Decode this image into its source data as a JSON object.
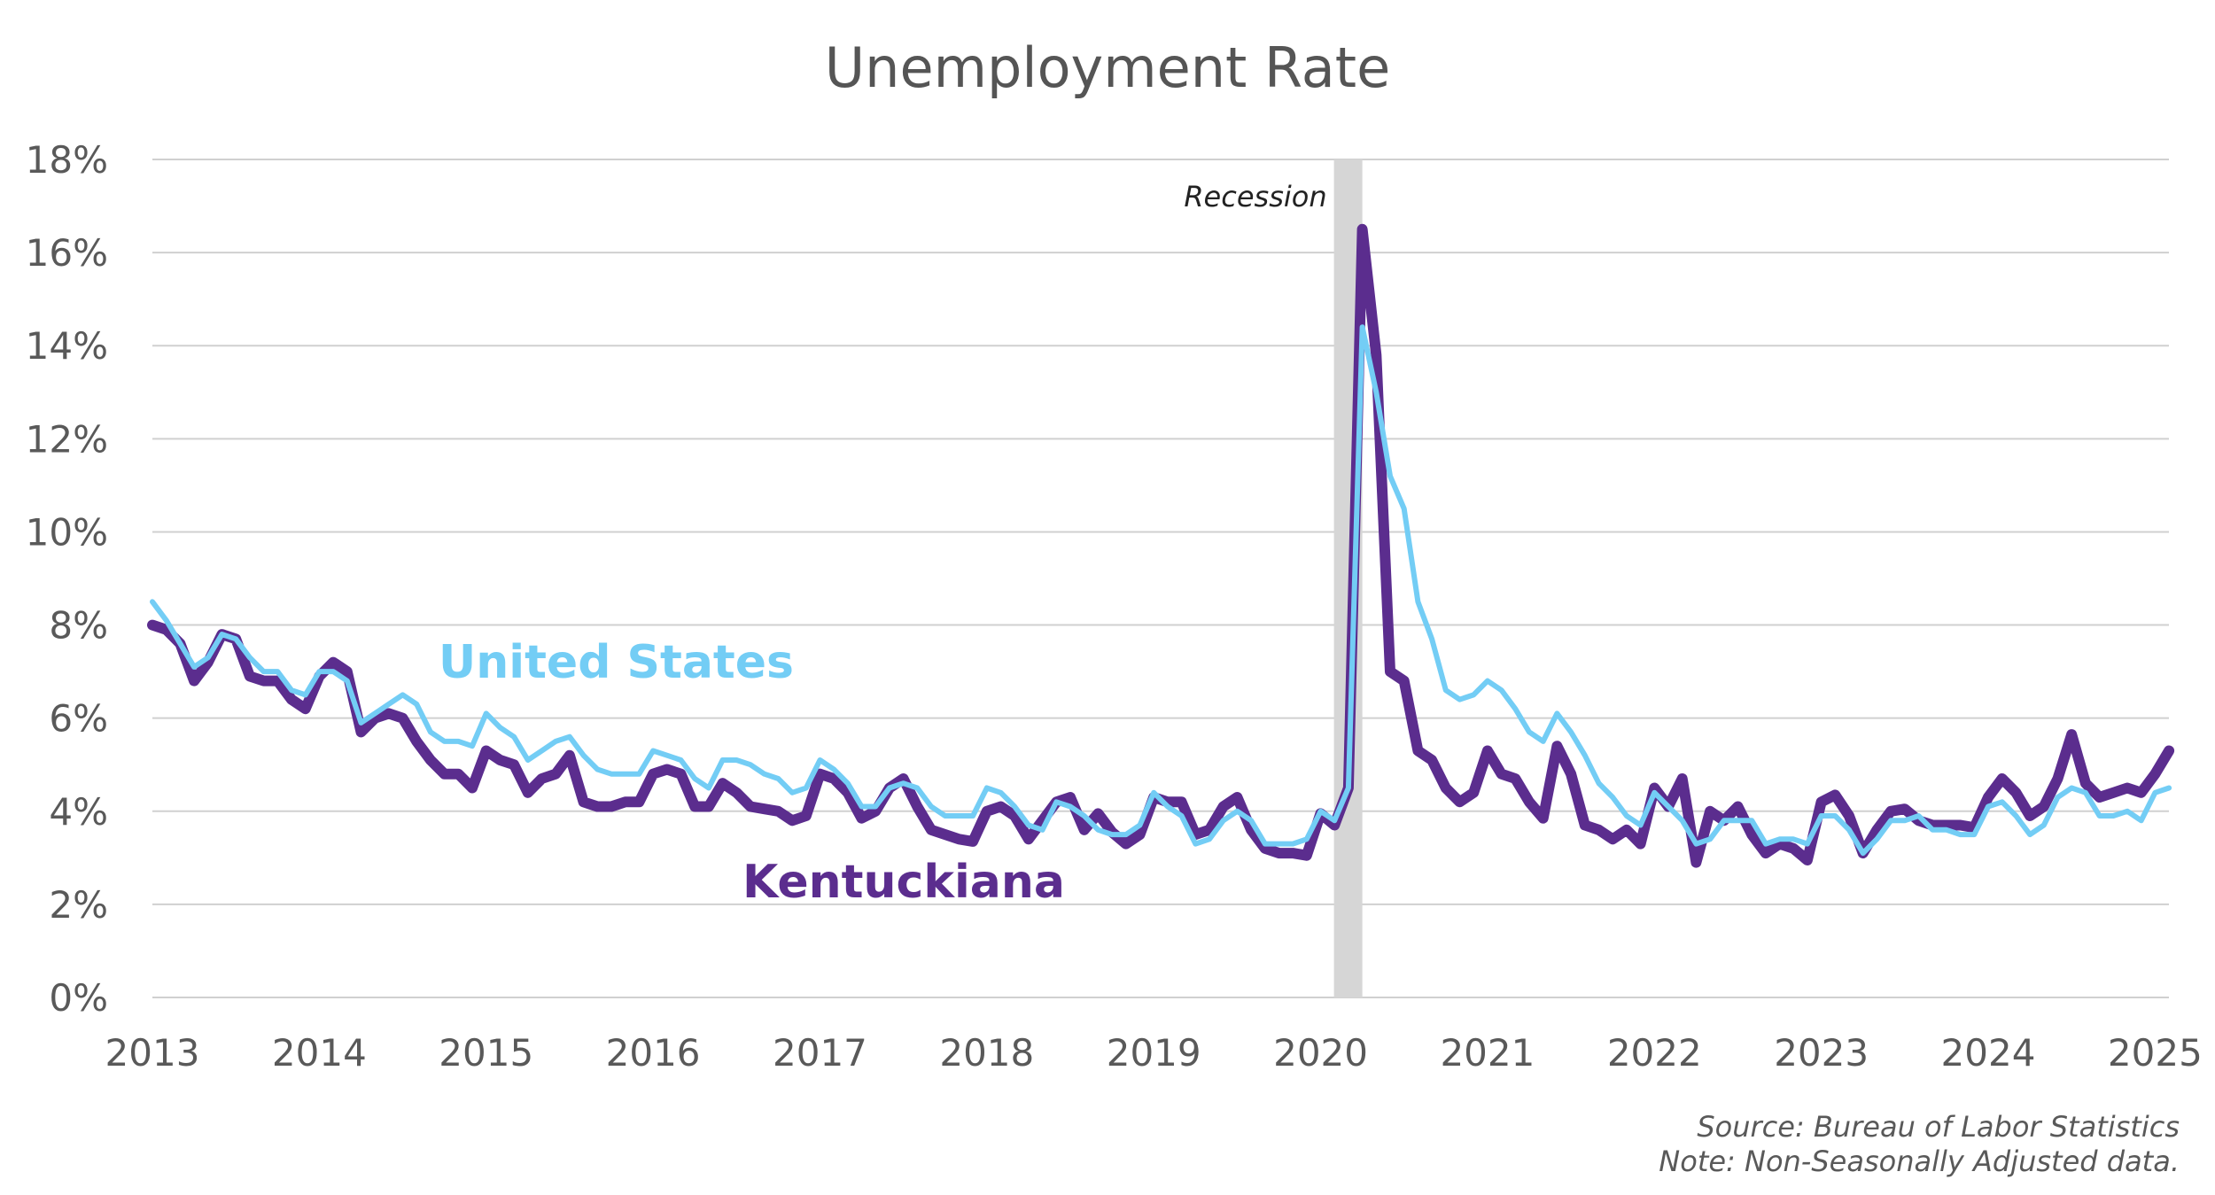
{
  "chart_data": {
    "type": "line",
    "title": "Unemployment Rate",
    "xlabel": "",
    "ylabel": "",
    "x_ticks": [
      "2013",
      "2014",
      "2015",
      "2016",
      "2017",
      "2018",
      "2019",
      "2020",
      "2021",
      "2022",
      "2023",
      "2024",
      "2025"
    ],
    "y_ticks": [
      "0%",
      "2%",
      "4%",
      "6%",
      "8%",
      "10%",
      "12%",
      "14%",
      "16%",
      "18%"
    ],
    "xlim": [
      2013.0,
      2025.083
    ],
    "ylim": [
      0,
      18
    ],
    "grid": true,
    "legend": "inline labels",
    "recession": {
      "label": "Recession",
      "start": 2020.08,
      "end": 2020.25
    },
    "annotations": {
      "source": "Source: Bureau of Labor Statistics",
      "note": "Note: Non-Seasonally Adjusted data."
    },
    "x_start": "2013-01",
    "frequency": "monthly",
    "series": [
      {
        "name": "United States",
        "color": "#73cdf5",
        "values": [
          8.5,
          8.1,
          7.6,
          7.1,
          7.3,
          7.8,
          7.7,
          7.3,
          7.0,
          7.0,
          6.6,
          6.5,
          7.0,
          7.0,
          6.8,
          5.9,
          6.1,
          6.3,
          6.5,
          6.3,
          5.7,
          5.5,
          5.5,
          5.4,
          6.1,
          5.8,
          5.6,
          5.1,
          5.3,
          5.5,
          5.6,
          5.2,
          4.9,
          4.8,
          4.8,
          4.8,
          5.3,
          5.2,
          5.1,
          4.7,
          4.5,
          5.1,
          5.1,
          5.0,
          4.8,
          4.7,
          4.4,
          4.5,
          5.1,
          4.9,
          4.6,
          4.1,
          4.1,
          4.5,
          4.6,
          4.5,
          4.1,
          3.9,
          3.9,
          3.9,
          4.5,
          4.4,
          4.1,
          3.7,
          3.6,
          4.2,
          4.1,
          3.9,
          3.6,
          3.5,
          3.5,
          3.7,
          4.4,
          4.1,
          3.9,
          3.3,
          3.4,
          3.8,
          4.0,
          3.8,
          3.3,
          3.3,
          3.3,
          3.4,
          4.0,
          3.8,
          4.5,
          14.4,
          13.0,
          11.2,
          10.5,
          8.5,
          7.7,
          6.6,
          6.4,
          6.5,
          6.8,
          6.6,
          6.2,
          5.7,
          5.5,
          6.1,
          5.7,
          5.2,
          4.6,
          4.3,
          3.9,
          3.7,
          4.4,
          4.1,
          3.8,
          3.3,
          3.4,
          3.8,
          3.8,
          3.8,
          3.3,
          3.4,
          3.4,
          3.3,
          3.9,
          3.9,
          3.6,
          3.1,
          3.4,
          3.8,
          3.8,
          3.9,
          3.6,
          3.6,
          3.5,
          3.5,
          4.1,
          4.2,
          3.9,
          3.5,
          3.7,
          4.3,
          4.5,
          4.4,
          3.9,
          3.9,
          4.0,
          3.8,
          4.4,
          4.5
        ]
      },
      {
        "name": "Kentuckiana",
        "color": "#5b2d8e",
        "values": [
          8.0,
          7.9,
          7.6,
          6.8,
          7.2,
          7.8,
          7.7,
          6.9,
          6.8,
          6.8,
          6.4,
          6.2,
          6.9,
          7.2,
          7.0,
          5.7,
          6.0,
          6.1,
          6.0,
          5.5,
          5.1,
          4.8,
          4.8,
          4.5,
          5.3,
          5.1,
          5.0,
          4.4,
          4.7,
          4.8,
          5.2,
          4.2,
          4.1,
          4.1,
          4.2,
          4.2,
          4.8,
          4.9,
          4.8,
          4.1,
          4.1,
          4.6,
          4.4,
          4.1,
          4.05,
          4.0,
          3.8,
          3.9,
          4.8,
          4.7,
          4.4,
          3.85,
          4.0,
          4.5,
          4.7,
          4.1,
          3.6,
          3.5,
          3.4,
          3.35,
          4.0,
          4.1,
          3.9,
          3.4,
          3.8,
          4.2,
          4.3,
          3.6,
          3.95,
          3.55,
          3.3,
          3.5,
          4.3,
          4.2,
          4.2,
          3.5,
          3.6,
          4.1,
          4.3,
          3.6,
          3.2,
          3.1,
          3.1,
          3.05,
          3.95,
          3.7,
          4.5,
          16.5,
          13.8,
          7.0,
          6.8,
          5.3,
          5.1,
          4.5,
          4.2,
          4.4,
          5.3,
          4.8,
          4.7,
          4.2,
          3.85,
          5.4,
          4.8,
          3.7,
          3.6,
          3.4,
          3.6,
          3.3,
          4.5,
          4.1,
          4.7,
          2.9,
          4.0,
          3.8,
          4.1,
          3.5,
          3.1,
          3.3,
          3.2,
          2.95,
          4.2,
          4.35,
          3.9,
          3.1,
          3.6,
          4.0,
          4.05,
          3.8,
          3.7,
          3.7,
          3.7,
          3.65,
          4.3,
          4.7,
          4.4,
          3.9,
          4.1,
          4.7,
          5.65,
          4.6,
          4.3,
          4.4,
          4.5,
          4.4,
          4.8,
          5.3
        ]
      }
    ]
  }
}
